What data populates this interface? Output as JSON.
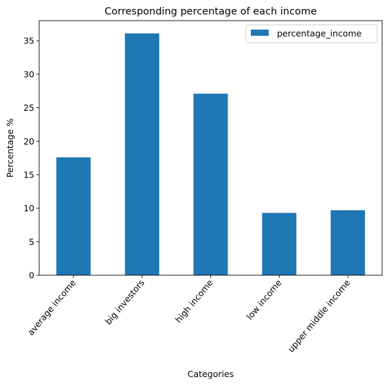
{
  "chart_data": {
    "type": "bar",
    "title": "Corresponding percentage of each income",
    "xlabel": "Categories",
    "ylabel": "Percentage %",
    "categories": [
      "average income",
      "big investors",
      "high income",
      "low income",
      "upper middle income"
    ],
    "series": [
      {
        "name": "percentage_income",
        "values": [
          17.6,
          36.1,
          27.1,
          9.3,
          9.7
        ],
        "color": "#1f77b4"
      }
    ],
    "ylim": [
      0,
      38
    ],
    "yticks": [
      0,
      5,
      10,
      15,
      20,
      25,
      30,
      35
    ],
    "grid": false,
    "legend": "top-right",
    "xtick_rotation": 50
  }
}
